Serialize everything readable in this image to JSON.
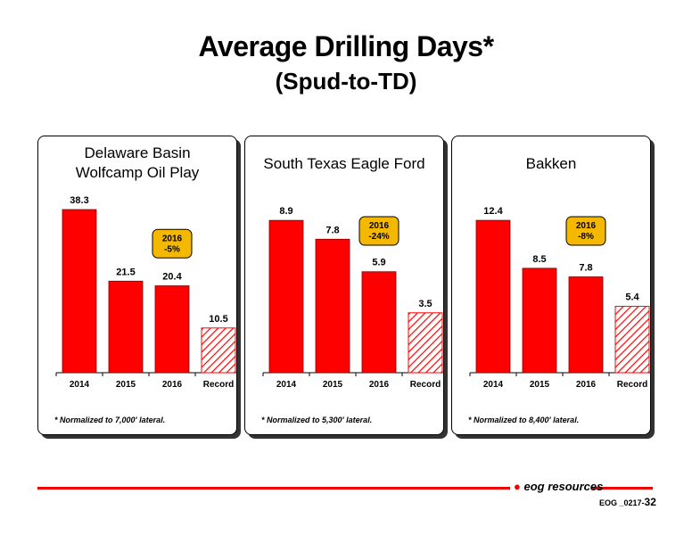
{
  "title": "Average Drilling Days*",
  "subtitle": "(Spud-to-TD)",
  "chart_data": [
    {
      "type": "bar",
      "title": "Delaware Basin Wolfcamp Oil Play",
      "title_lines": [
        "Delaware Basin",
        "Wolfcamp Oil Play"
      ],
      "categories": [
        "2014",
        "2015",
        "2016",
        "Record"
      ],
      "values": [
        38.3,
        21.5,
        20.4,
        10.5
      ],
      "ylim": [
        0,
        45
      ],
      "callout": [
        "2016",
        "-5%"
      ],
      "footnote": "* Normalized to 7,000' lateral."
    },
    {
      "type": "bar",
      "title": "South Texas Eagle Ford",
      "title_lines": [
        "South Texas Eagle Ford"
      ],
      "categories": [
        "2014",
        "2015",
        "2016",
        "Record"
      ],
      "values": [
        8.9,
        7.8,
        5.9,
        3.5
      ],
      "ylim": [
        0,
        11.2
      ],
      "callout": [
        "2016",
        "-24%"
      ],
      "footnote": "* Normalized to 5,300' lateral."
    },
    {
      "type": "bar",
      "title": "Bakken",
      "title_lines": [
        "Bakken"
      ],
      "categories": [
        "2014",
        "2015",
        "2016",
        "Record"
      ],
      "values": [
        12.4,
        8.5,
        7.8,
        5.4
      ],
      "ylim": [
        0,
        15.6
      ],
      "callout": [
        "2016",
        "-8%"
      ],
      "footnote": "* Normalized to 8,400' lateral."
    }
  ],
  "colors": {
    "bar": "#ff0000",
    "record_hatch": "#ff0000",
    "callout": "#f5b800",
    "line": "#e00000"
  },
  "footer": {
    "logo": "eog resources",
    "code": "EOG _0217-",
    "page": "32"
  }
}
